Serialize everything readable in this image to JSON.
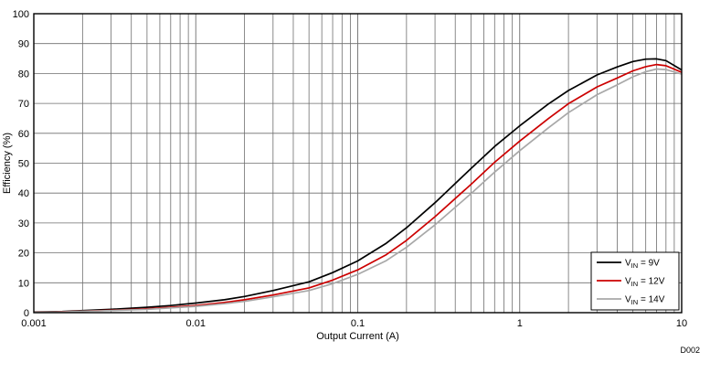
{
  "chart_data": {
    "type": "line",
    "title": "",
    "xlabel": "Output Current (A)",
    "ylabel": "Efficiency (%)",
    "xscale": "log",
    "xlim": [
      0.001,
      10
    ],
    "ylim": [
      0,
      100
    ],
    "ytick_step": 10,
    "xticks": [
      0.001,
      0.01,
      0.1,
      1,
      10
    ],
    "xtick_labels": [
      "0.001",
      "0.01",
      "0.1",
      "1",
      "10"
    ],
    "grid": true,
    "legend_position": "bottom-right",
    "watermark": "D002",
    "colors": {
      "grid": "#6e6e6e",
      "border": "#000000",
      "background": "#ffffff",
      "watermark": "#8c8c8c"
    },
    "x": [
      0.001,
      0.0015,
      0.002,
      0.003,
      0.005,
      0.007,
      0.01,
      0.015,
      0.02,
      0.03,
      0.05,
      0.07,
      0.1,
      0.15,
      0.2,
      0.3,
      0.5,
      0.7,
      1,
      1.5,
      2,
      3,
      4,
      5,
      6,
      7,
      8,
      10
    ],
    "series": [
      {
        "name": "VIN = 9V",
        "label_parts": {
          "pre": "V",
          "sub": "IN",
          "post": " = 9V"
        },
        "color": "#000000",
        "values": [
          0.2,
          0.4,
          0.7,
          1.1,
          1.8,
          2.4,
          3.2,
          4.3,
          5.4,
          7.4,
          10.3,
          13.4,
          17.3,
          23.2,
          28.4,
          36.8,
          48.2,
          55.6,
          62.5,
          69.8,
          74.3,
          79.5,
          82.2,
          84.0,
          84.8,
          84.9,
          84.3,
          81.2
        ]
      },
      {
        "name": "VIN = 12V",
        "label_parts": {
          "pre": "V",
          "sub": "IN",
          "post": " = 12V"
        },
        "color": "#cc0000",
        "values": [
          0.1,
          0.3,
          0.5,
          0.8,
          1.3,
          1.8,
          2.4,
          3.4,
          4.3,
          5.9,
          8.3,
          10.9,
          14.3,
          19.4,
          24.2,
          32.1,
          42.9,
          50.3,
          57.4,
          64.9,
          69.9,
          75.5,
          78.5,
          80.9,
          82.3,
          83.0,
          82.6,
          80.4
        ]
      },
      {
        "name": "VIN = 14V",
        "label_parts": {
          "pre": "V",
          "sub": "IN",
          "post": " = 14V"
        },
        "color": "#a8a8a8",
        "values": [
          0.1,
          0.25,
          0.45,
          0.7,
          1.1,
          1.6,
          2.1,
          3.0,
          3.8,
          5.3,
          7.4,
          9.7,
          12.8,
          17.4,
          21.9,
          29.4,
          39.8,
          47.0,
          54.2,
          61.8,
          66.9,
          72.9,
          76.2,
          78.9,
          80.6,
          81.5,
          81.3,
          79.8
        ]
      }
    ]
  }
}
